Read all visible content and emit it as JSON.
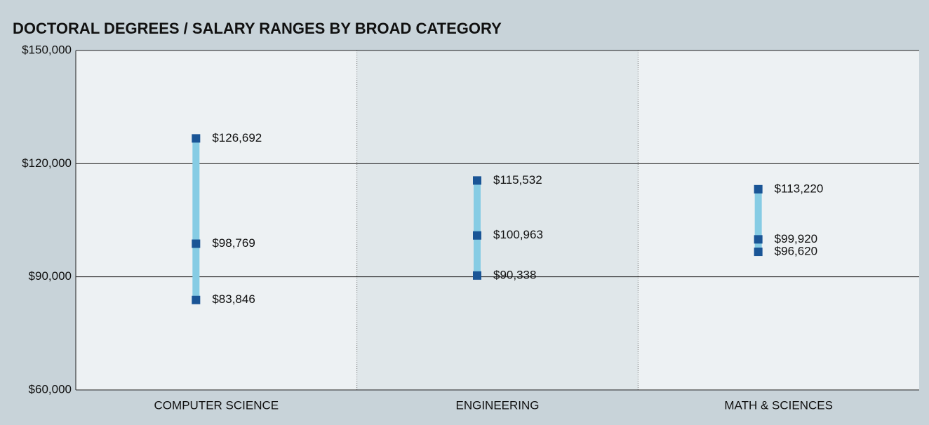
{
  "chart_data": {
    "type": "range",
    "title": "DOCTORAL DEGREES / SALARY RANGES BY BROAD CATEGORY",
    "categories": [
      "COMPUTER SCIENCE",
      "ENGINEERING",
      "MATH & SCIENCES"
    ],
    "high": [
      126692,
      115532,
      113220
    ],
    "high_labels": [
      "$126,692",
      "$115,532",
      "$113,220"
    ],
    "middle": [
      98769,
      100963,
      99920
    ],
    "middle_labels": [
      "$98,769",
      "$100,963",
      "$99,920"
    ],
    "low": [
      83846,
      90338,
      96620
    ],
    "low_labels": [
      "$83,846",
      "$90,338",
      "$96,620"
    ],
    "bar_color": "#86cce4",
    "marker_color": "#1a5596",
    "ylim": [
      60000,
      150000
    ],
    "yticks": [
      {
        "value": 60000,
        "label": "$60,000"
      },
      {
        "value": 90000,
        "label": "$90,000"
      },
      {
        "value": 120000,
        "label": "$120,000"
      },
      {
        "value": 150000,
        "label": "$150,000"
      }
    ],
    "grid": true
  }
}
